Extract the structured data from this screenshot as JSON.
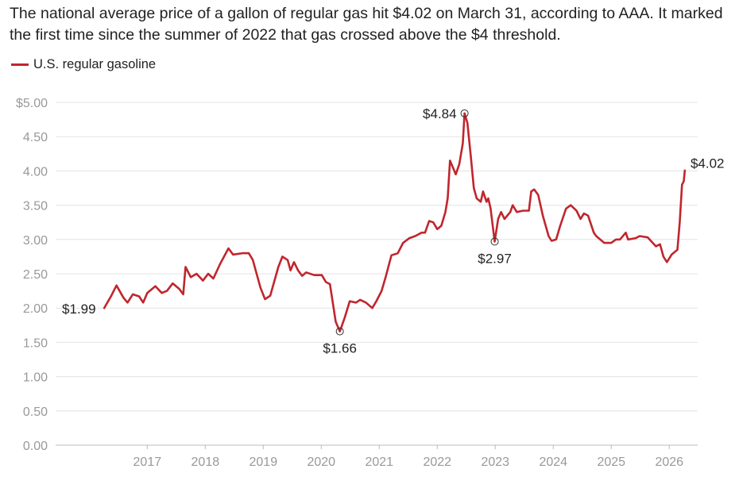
{
  "title": "The national average price of a gallon of regular gas hit $4.02 on March 31, according to AAA. It marked the first time since the summer of 2022 that gas crossed above the $4 threshold.",
  "chart_data": {
    "type": "line",
    "title": "The national average price of a gallon of regular gas hit $4.02 on March 31, according to AAA. It marked the first time since the summer of 2022 that gas crossed above the $4 threshold.",
    "xlabel": "",
    "ylabel": "",
    "xlim": [
      2015.42,
      2026.49
    ],
    "ylim": [
      0,
      5
    ],
    "grid": true,
    "legend_position": "top-left",
    "x_ticks": [
      2017,
      2018,
      2019,
      2020,
      2021,
      2022,
      2023,
      2024,
      2025,
      2026
    ],
    "x_tick_labels": [
      "2017",
      "2018",
      "2019",
      "2020",
      "2021",
      "2022",
      "2023",
      "2024",
      "2025",
      "2026"
    ],
    "y_ticks": [
      0,
      0.5,
      1,
      1.5,
      2,
      2.5,
      3,
      3.5,
      4,
      4.5,
      5
    ],
    "y_tick_labels": [
      "0.00",
      "0.50",
      "1.00",
      "1.50",
      "2.00",
      "2.50",
      "3.00",
      "3.50",
      "4.00",
      "4.50",
      "$5.00"
    ],
    "color": "#c0262d",
    "series": [
      {
        "name": "U.S. regular gasoline",
        "x": [
          2016.25,
          2016.38,
          2016.47,
          2016.59,
          2016.66,
          2016.75,
          2016.86,
          2016.93,
          2017.0,
          2017.14,
          2017.25,
          2017.34,
          2017.44,
          2017.55,
          2017.62,
          2017.66,
          2017.75,
          2017.85,
          2017.96,
          2018.05,
          2018.14,
          2018.26,
          2018.4,
          2018.48,
          2018.64,
          2018.75,
          2018.82,
          2018.95,
          2019.03,
          2019.12,
          2019.26,
          2019.33,
          2019.42,
          2019.47,
          2019.53,
          2019.6,
          2019.67,
          2019.74,
          2019.88,
          2020.01,
          2020.08,
          2020.15,
          2020.25,
          2020.32,
          2020.4,
          2020.49,
          2020.6,
          2020.67,
          2020.77,
          2020.88,
          2020.95,
          2021.04,
          2021.11,
          2021.21,
          2021.32,
          2021.41,
          2021.52,
          2021.62,
          2021.73,
          2021.79,
          2021.86,
          2021.93,
          2022.0,
          2022.07,
          2022.14,
          2022.18,
          2022.22,
          2022.27,
          2022.32,
          2022.38,
          2022.44,
          2022.47,
          2022.52,
          2022.58,
          2022.63,
          2022.68,
          2022.75,
          2022.79,
          2022.85,
          2022.88,
          2022.92,
          2022.99,
          2023.05,
          2023.1,
          2023.16,
          2023.26,
          2023.3,
          2023.37,
          2023.48,
          2023.58,
          2023.62,
          2023.67,
          2023.74,
          2023.82,
          2023.92,
          2023.97,
          2024.05,
          2024.12,
          2024.22,
          2024.3,
          2024.4,
          2024.47,
          2024.53,
          2024.6,
          2024.7,
          2024.74,
          2024.88,
          2025.0,
          2025.08,
          2025.15,
          2025.25,
          2025.29,
          2025.42,
          2025.49,
          2025.63,
          2025.77,
          2025.84,
          2025.9,
          2025.96,
          2026.04,
          2026.14,
          2026.18,
          2026.22,
          2026.25,
          2026.27
        ],
        "y": [
          1.99,
          2.18,
          2.33,
          2.15,
          2.08,
          2.2,
          2.17,
          2.08,
          2.22,
          2.32,
          2.22,
          2.25,
          2.36,
          2.28,
          2.2,
          2.6,
          2.45,
          2.5,
          2.4,
          2.5,
          2.43,
          2.65,
          2.87,
          2.78,
          2.8,
          2.8,
          2.7,
          2.3,
          2.13,
          2.18,
          2.6,
          2.75,
          2.7,
          2.55,
          2.67,
          2.55,
          2.47,
          2.52,
          2.48,
          2.48,
          2.38,
          2.35,
          1.8,
          1.66,
          1.85,
          2.1,
          2.08,
          2.12,
          2.08,
          2.0,
          2.1,
          2.25,
          2.45,
          2.77,
          2.8,
          2.95,
          3.02,
          3.05,
          3.1,
          3.1,
          3.27,
          3.25,
          3.15,
          3.2,
          3.4,
          3.6,
          4.15,
          4.05,
          3.95,
          4.1,
          4.4,
          4.84,
          4.7,
          4.2,
          3.75,
          3.6,
          3.55,
          3.7,
          3.55,
          3.6,
          3.45,
          2.97,
          3.3,
          3.4,
          3.3,
          3.4,
          3.5,
          3.4,
          3.42,
          3.42,
          3.7,
          3.73,
          3.65,
          3.35,
          3.05,
          2.98,
          3.0,
          3.2,
          3.45,
          3.5,
          3.42,
          3.3,
          3.38,
          3.35,
          3.1,
          3.05,
          2.95,
          2.95,
          3.0,
          3.0,
          3.1,
          3.0,
          3.02,
          3.05,
          3.03,
          2.9,
          2.93,
          2.75,
          2.67,
          2.78,
          2.85,
          3.25,
          3.8,
          3.85,
          4.02
        ]
      }
    ],
    "annotations": [
      {
        "x": 2016.25,
        "y": 1.99,
        "label": "$1.99",
        "pos": "left",
        "marker": false
      },
      {
        "x": 2020.32,
        "y": 1.66,
        "label": "$1.66",
        "pos": "below",
        "marker": true
      },
      {
        "x": 2022.47,
        "y": 4.84,
        "label": "$4.84",
        "pos": "left",
        "marker": true
      },
      {
        "x": 2022.99,
        "y": 2.97,
        "label": "$2.97",
        "pos": "below",
        "marker": true
      },
      {
        "x": 2026.27,
        "y": 4.02,
        "label": "$4.02",
        "pos": "right",
        "marker": false
      }
    ]
  }
}
